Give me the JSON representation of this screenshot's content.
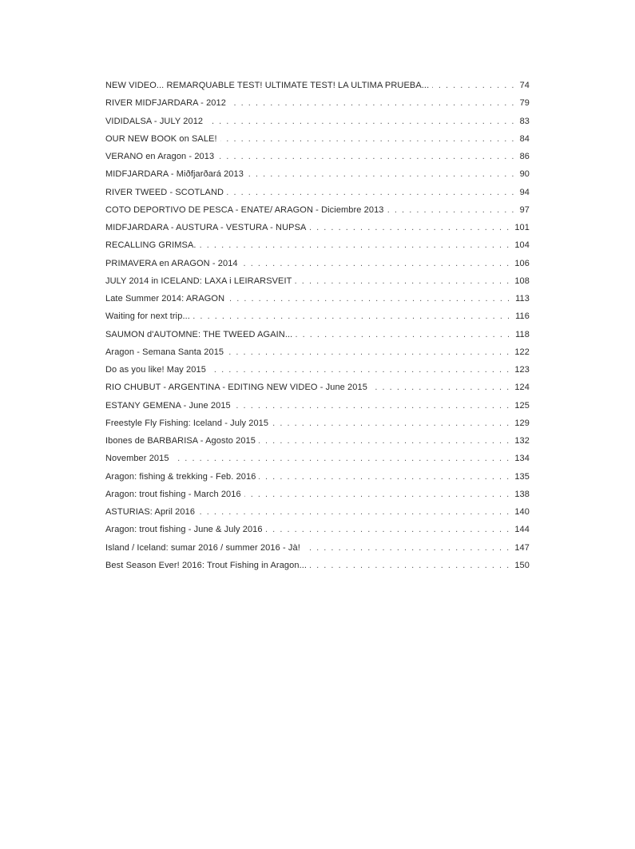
{
  "toc": {
    "entries": [
      {
        "title": "NEW VIDEO... REMARQUABLE TEST! ULTIMATE TEST! LA ULTIMA PRUEBA...",
        "page": "74"
      },
      {
        "title": "RIVER MIDFJARDARA - 2012",
        "page": "79"
      },
      {
        "title": "VIDIDALSA - JULY 2012",
        "page": "83"
      },
      {
        "title": "OUR NEW BOOK on SALE!",
        "page": "84"
      },
      {
        "title": "VERANO en Aragon - 2013",
        "page": "86"
      },
      {
        "title": "MIDFJARDARA - Miðfjarðará 2013",
        "page": "90"
      },
      {
        "title": "RIVER TWEED - SCOTLAND",
        "page": "94"
      },
      {
        "title": "COTO DEPORTIVO DE PESCA - ENATE/ ARAGON - Diciembre 2013",
        "page": "97"
      },
      {
        "title": "MIDFJARDARA - AUSTURA - VESTURA - NUPSA",
        "page": "101"
      },
      {
        "title": "RECALLING GRIMSA.",
        "page": "104"
      },
      {
        "title": "PRIMAVERA en ARAGON - 2014",
        "page": "106"
      },
      {
        "title": "JULY 2014 in ICELAND: LAXA i LEIRARSVEIT",
        "page": "108"
      },
      {
        "title": "Late Summer 2014: ARAGON",
        "page": "113"
      },
      {
        "title": "Waiting for next trip...",
        "page": "116"
      },
      {
        "title": "SAUMON d'AUTOMNE: THE TWEED AGAIN...",
        "page": "118"
      },
      {
        "title": "Aragon - Semana Santa 2015",
        "page": "122"
      },
      {
        "title": "Do as you like! May 2015",
        "page": "123"
      },
      {
        "title": "RIO CHUBUT - ARGENTINA - EDITING NEW VIDEO - June 2015",
        "page": "124"
      },
      {
        "title": "ESTANY GEMENA - June 2015",
        "page": "125"
      },
      {
        "title": "Freestyle Fly Fishing: Iceland - July 2015",
        "page": "129"
      },
      {
        "title": "Ibones de BARBARISA - Agosto 2015",
        "page": "132"
      },
      {
        "title": "November 2015",
        "page": "134"
      },
      {
        "title": "Aragon: fishing & trekking - Feb. 2016",
        "page": "135"
      },
      {
        "title": "Aragon: trout fishing - March 2016",
        "page": "138"
      },
      {
        "title": "ASTURIAS: April 2016",
        "page": "140"
      },
      {
        "title": "Aragon: trout fishing - June & July 2016",
        "page": "144"
      },
      {
        "title": "Island / Iceland: sumar 2016 / summer 2016 - Jà!",
        "page": "147"
      },
      {
        "title": "Best Season Ever! 2016: Trout Fishing in Aragon...",
        "page": "150"
      }
    ]
  }
}
